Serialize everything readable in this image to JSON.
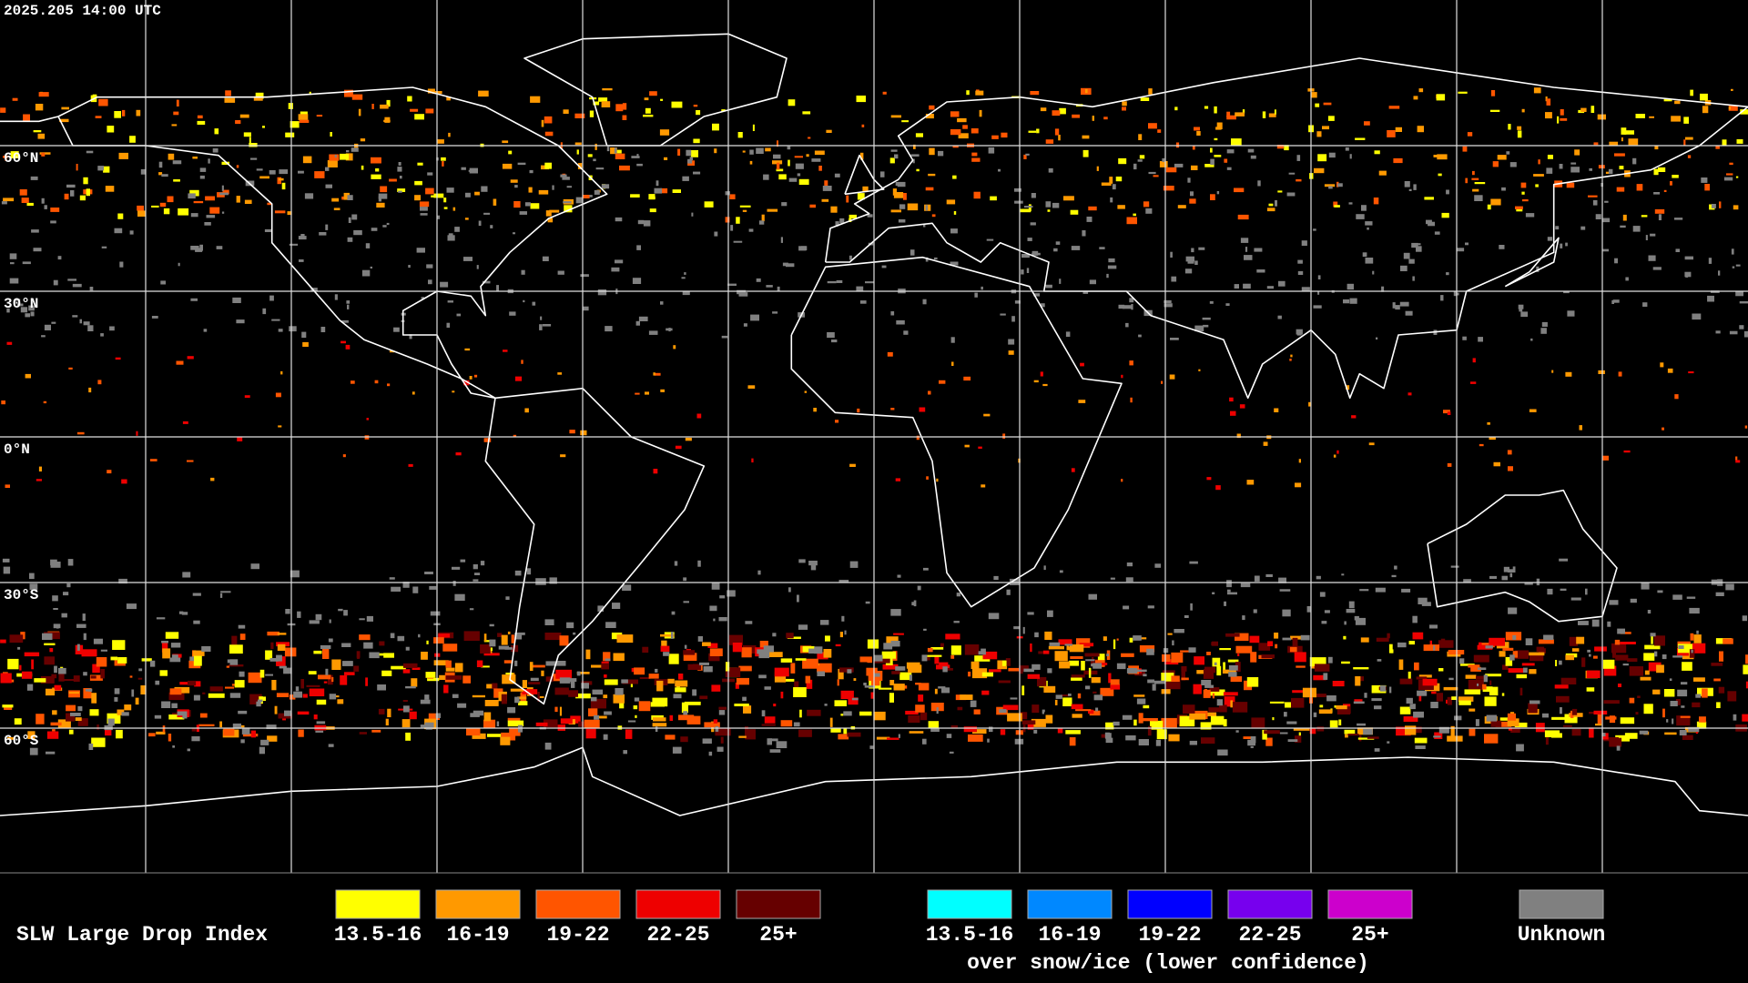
{
  "timestamp": "2025.205 14:00 UTC",
  "map": {
    "latitude_labels": [
      "60°N",
      "30°N",
      "0°N",
      "30°S",
      "60°S"
    ]
  },
  "legend": {
    "title": "SLW Large Drop Index",
    "groups": [
      {
        "items": [
          {
            "label": "13.5-16",
            "color": "#ffff00"
          },
          {
            "label": "16-19",
            "color": "#ff9900"
          },
          {
            "label": "19-22",
            "color": "#ff5500"
          },
          {
            "label": "22-25",
            "color": "#ee0000"
          },
          {
            "label": "25+",
            "color": "#660000"
          }
        ]
      },
      {
        "items": [
          {
            "label": "13.5-16",
            "color": "#00ffff"
          },
          {
            "label": "16-19",
            "color": "#0088ff"
          },
          {
            "label": "19-22",
            "color": "#0000ff"
          },
          {
            "label": "22-25",
            "color": "#7700ee"
          },
          {
            "label": "25+",
            "color": "#cc00cc"
          }
        ],
        "note": "over snow/ice (lower confidence)"
      }
    ],
    "unknown": {
      "label": "Unknown",
      "color": "#808080"
    }
  }
}
